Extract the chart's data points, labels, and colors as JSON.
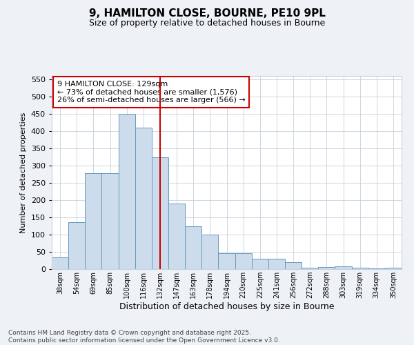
{
  "title1": "9, HAMILTON CLOSE, BOURNE, PE10 9PL",
  "title2": "Size of property relative to detached houses in Bourne",
  "xlabel": "Distribution of detached houses by size in Bourne",
  "ylabel": "Number of detached properties",
  "categories": [
    "38sqm",
    "54sqm",
    "69sqm",
    "85sqm",
    "100sqm",
    "116sqm",
    "132sqm",
    "147sqm",
    "163sqm",
    "178sqm",
    "194sqm",
    "210sqm",
    "225sqm",
    "241sqm",
    "256sqm",
    "272sqm",
    "288sqm",
    "303sqm",
    "319sqm",
    "334sqm",
    "350sqm"
  ],
  "values": [
    35,
    137,
    278,
    278,
    450,
    410,
    325,
    190,
    125,
    100,
    46,
    46,
    30,
    30,
    20,
    5,
    7,
    8,
    4,
    3,
    5
  ],
  "bar_color": "#ccdcec",
  "bar_edge_color": "#6699bb",
  "vline_x_index": 6,
  "vline_color": "#cc0000",
  "annotation_text": "9 HAMILTON CLOSE: 129sqm\n← 73% of detached houses are smaller (1,576)\n26% of semi-detached houses are larger (566) →",
  "annotation_box_color": "#cc0000",
  "footer_text": "Contains HM Land Registry data © Crown copyright and database right 2025.\nContains public sector information licensed under the Open Government Licence v3.0.",
  "ylim": [
    0,
    560
  ],
  "yticks": [
    0,
    50,
    100,
    150,
    200,
    250,
    300,
    350,
    400,
    450,
    500,
    550
  ],
  "bg_color": "#eef2f7",
  "plot_bg_color": "#ffffff",
  "grid_color": "#c5d0dc"
}
